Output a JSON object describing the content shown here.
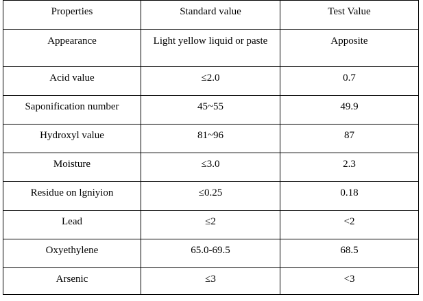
{
  "table": {
    "headers": [
      "Properties",
      "Standard value",
      "Test Value"
    ],
    "rows": [
      [
        "Appearance",
        "Light yellow liquid or paste",
        "Apposite"
      ],
      [
        "Acid value",
        "≤2.0",
        "0.7"
      ],
      [
        "Saponification number",
        "45~55",
        "49.9"
      ],
      [
        "Hydroxyl value",
        "81~96",
        "87"
      ],
      [
        "Moisture",
        "≤3.0",
        "2.3"
      ],
      [
        "Residue on lgniyion",
        "≤0.25",
        "0.18"
      ],
      [
        "Lead",
        "≤2",
        "<2"
      ],
      [
        "Oxyethylene",
        "65.0-69.5",
        "68.5"
      ],
      [
        "Arsenic",
        "≤3",
        "<3"
      ]
    ]
  }
}
